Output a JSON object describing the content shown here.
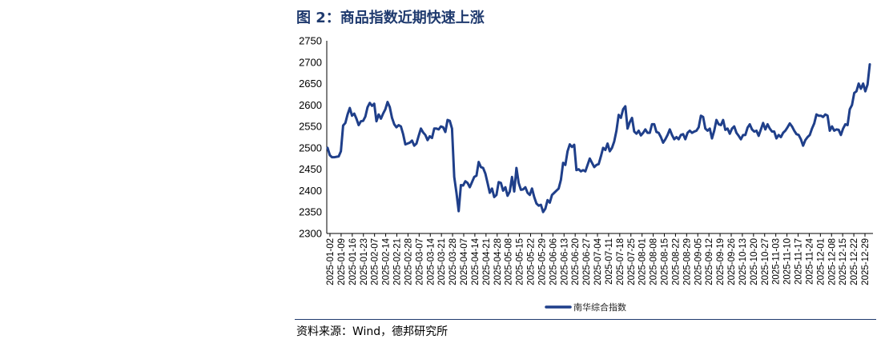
{
  "figure": {
    "title": "图 2：商品指数近期快速上涨",
    "source": "资料来源：Wind，德邦研究所"
  },
  "colors": {
    "series": "#1f3f8a",
    "title": "#1f3a6e",
    "axis": "#000000"
  },
  "chart_data": {
    "type": "line",
    "title": "",
    "xlabel": "",
    "ylabel": "",
    "ylim": [
      2300,
      2750
    ],
    "yticks": [
      2300,
      2350,
      2400,
      2450,
      2500,
      2550,
      2600,
      2650,
      2700,
      2750
    ],
    "grid": false,
    "legend_position": "bottom-center",
    "x_tick_labels": [
      "2025-01-02",
      "2025-01-09",
      "2025-01-16",
      "2025-01-23",
      "2025-02-07",
      "2025-02-14",
      "2025-02-21",
      "2025-02-28",
      "2025-03-07",
      "2025-03-14",
      "2025-03-21",
      "2025-03-28",
      "2025-04-07",
      "2025-04-14",
      "2025-04-21",
      "2025-04-28",
      "2025-05-08",
      "2025-05-15",
      "2025-05-22",
      "2025-05-29",
      "2025-06-06",
      "2025-06-13",
      "2025-06-20",
      "2025-06-27",
      "2025-07-04",
      "2025-07-11",
      "2025-07-18",
      "2025-07-25",
      "2025-08-01",
      "2025-08-08",
      "2025-08-15",
      "2025-08-22",
      "2025-08-29",
      "2025-09-05",
      "2025-09-12",
      "2025-09-19",
      "2025-09-26",
      "2025-10-13",
      "2025-10-20",
      "2025-10-27",
      "2025-11-03",
      "2025-11-10",
      "2025-11-17",
      "2025-11-24",
      "2025-12-01",
      "2025-12-08",
      "2025-12-15",
      "2025-12-22",
      "2025-12-29"
    ],
    "series": [
      {
        "name": "南华综合指数",
        "values": [
          2500,
          2483,
          2478,
          2478,
          2479,
          2480,
          2492,
          2552,
          2558,
          2578,
          2593,
          2575,
          2580,
          2568,
          2553,
          2562,
          2563,
          2573,
          2595,
          2605,
          2598,
          2603,
          2562,
          2578,
          2568,
          2580,
          2590,
          2607,
          2595,
          2570,
          2555,
          2548,
          2553,
          2550,
          2532,
          2508,
          2510,
          2512,
          2517,
          2505,
          2510,
          2528,
          2545,
          2536,
          2530,
          2518,
          2527,
          2523,
          2545,
          2545,
          2543,
          2550,
          2548,
          2537,
          2565,
          2563,
          2545,
          2432,
          2395,
          2352,
          2413,
          2412,
          2422,
          2418,
          2408,
          2420,
          2432,
          2435,
          2467,
          2455,
          2453,
          2440,
          2418,
          2395,
          2405,
          2385,
          2390,
          2420,
          2418,
          2400,
          2408,
          2388,
          2398,
          2432,
          2398,
          2453,
          2418,
          2402,
          2403,
          2408,
          2395,
          2390,
          2405,
          2385,
          2370,
          2365,
          2367,
          2350,
          2358,
          2378,
          2372,
          2390,
          2395,
          2400,
          2405,
          2425,
          2465,
          2460,
          2492,
          2508,
          2502,
          2507,
          2448,
          2450,
          2445,
          2448,
          2445,
          2460,
          2475,
          2465,
          2455,
          2460,
          2462,
          2480,
          2500,
          2495,
          2510,
          2492,
          2500,
          2515,
          2540,
          2577,
          2570,
          2590,
          2597,
          2545,
          2560,
          2570,
          2538,
          2533,
          2540,
          2529,
          2535,
          2543,
          2535,
          2535,
          2555,
          2555,
          2537,
          2535,
          2525,
          2512,
          2520,
          2530,
          2543,
          2530,
          2520,
          2525,
          2520,
          2530,
          2532,
          2520,
          2535,
          2540,
          2535,
          2538,
          2540,
          2548,
          2575,
          2572,
          2545,
          2540,
          2545,
          2522,
          2540,
          2565,
          2555,
          2553,
          2565,
          2542,
          2545,
          2533,
          2545,
          2550,
          2535,
          2528,
          2520,
          2530,
          2530,
          2547,
          2555,
          2543,
          2538,
          2540,
          2528,
          2543,
          2558,
          2543,
          2555,
          2545,
          2538,
          2538,
          2522,
          2530,
          2525,
          2535,
          2540,
          2548,
          2557,
          2550,
          2540,
          2532,
          2530,
          2520,
          2505,
          2518,
          2525,
          2530,
          2545,
          2557,
          2578,
          2575,
          2575,
          2572,
          2578,
          2575,
          2540,
          2550,
          2540,
          2543,
          2542,
          2530,
          2545,
          2555,
          2553,
          2590,
          2600,
          2628,
          2632,
          2650,
          2638,
          2650,
          2632,
          2648,
          2695
        ]
      }
    ]
  }
}
